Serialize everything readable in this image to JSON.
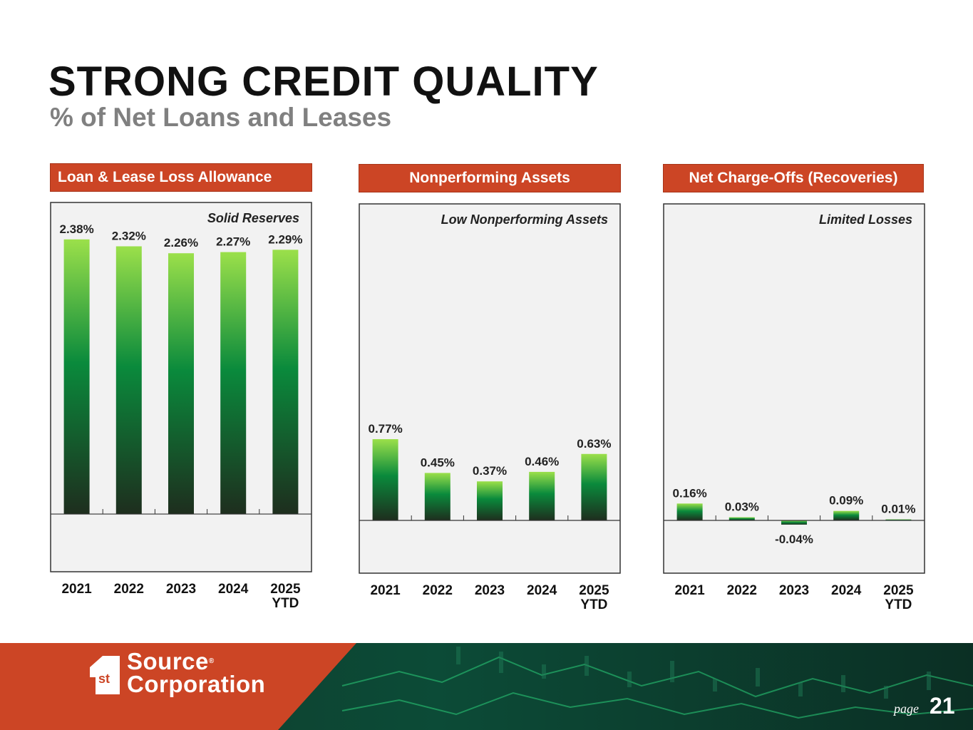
{
  "title": "STRONG CREDIT QUALITY",
  "subtitle": "% of Net Loans and Leases",
  "colors": {
    "header_bg": "#cc4525",
    "bar_top": "#9be04a",
    "bar_mid": "#0a8a3c",
    "bar_bottom": "#1e2e1e",
    "plot_bg": "#f2f2f2"
  },
  "chart_data": [
    {
      "type": "bar",
      "title": "Loan & Lease Loss Allowance",
      "annotation": "Solid Reserves",
      "categories": [
        "2021",
        "2022",
        "2023",
        "2024",
        "2025 YTD"
      ],
      "values": [
        2.38,
        2.32,
        2.26,
        2.27,
        2.29
      ],
      "value_labels": [
        "2.38%",
        "2.32%",
        "2.26%",
        "2.27%",
        "2.29%"
      ],
      "unit": "%",
      "ylim": [
        -0.5,
        2.7
      ],
      "grid": false,
      "legend": "none"
    },
    {
      "type": "bar",
      "title": "Nonperforming Assets",
      "annotation": "Low Nonperforming Assets",
      "categories": [
        "2021",
        "2022",
        "2023",
        "2024",
        "2025 YTD"
      ],
      "values": [
        0.77,
        0.45,
        0.37,
        0.46,
        0.63
      ],
      "value_labels": [
        "0.77%",
        "0.45%",
        "0.37%",
        "0.46%",
        "0.63%"
      ],
      "unit": "%",
      "ylim": [
        -0.5,
        3.0
      ],
      "grid": false,
      "legend": "none"
    },
    {
      "type": "bar",
      "title": "Net Charge-Offs (Recoveries)",
      "annotation": "Limited Losses",
      "categories": [
        "2021",
        "2022",
        "2023",
        "2024",
        "2025 YTD"
      ],
      "values": [
        0.16,
        0.03,
        -0.04,
        0.09,
        0.01
      ],
      "value_labels": [
        "0.16%",
        "0.03%",
        "-0.04%",
        "0.09%",
        "0.01%"
      ],
      "unit": "%",
      "ylim": [
        -0.5,
        3.0
      ],
      "grid": false,
      "legend": "none"
    }
  ],
  "footer": {
    "logo_mark": "st",
    "logo_line1": "Source",
    "logo_line2": "Corporation",
    "page_label": "page",
    "page_number": "21"
  }
}
